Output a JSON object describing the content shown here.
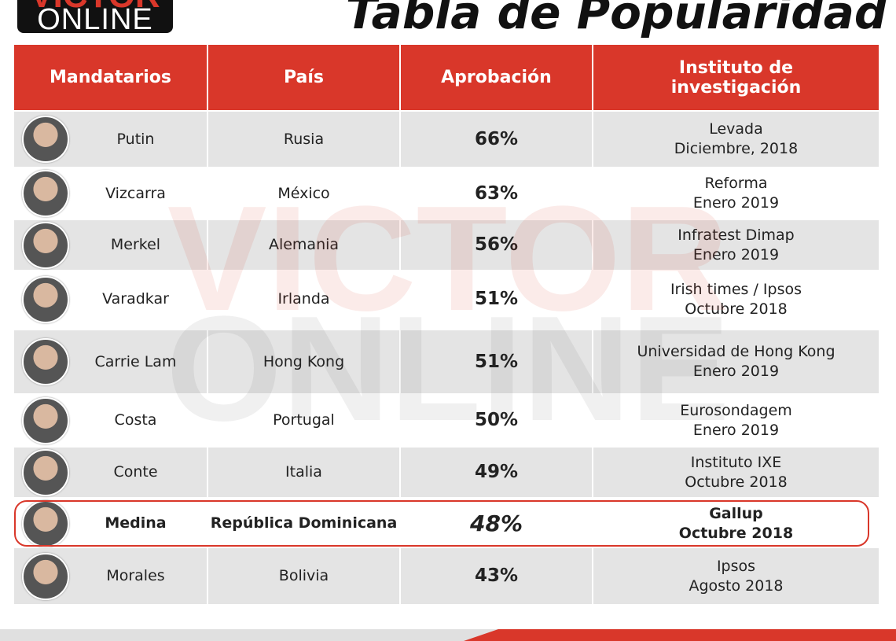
{
  "logo": {
    "top": "VICTOR",
    "bottom": "ONLINE"
  },
  "title": "Tabla de Popularidad",
  "watermark": [
    "VICTOR",
    "ONLINE"
  ],
  "table": {
    "header": [
      "Mandatarios",
      "País",
      "Aprobación",
      "Instituto de investigación"
    ],
    "highlighted_row": 7,
    "rows": [
      [
        "Putin",
        "Rusia",
        "66%",
        "Levada",
        "Diciembre, 2018"
      ],
      [
        "Vizcarra",
        "México",
        "63%",
        "Reforma",
        "Enero 2019"
      ],
      [
        "Merkel",
        "Alemania",
        "56%",
        "Infratest Dimap",
        "Enero 2019"
      ],
      [
        "Varadkar",
        "Irlanda",
        "51%",
        "Irish times / Ipsos",
        "Octubre 2018"
      ],
      [
        "Carrie Lam",
        "Hong Kong",
        "51%",
        "Universidad de Hong Kong",
        "Enero 2019"
      ],
      [
        "Costa",
        "Portugal",
        "50%",
        "Eurosondagem",
        "Enero 2019"
      ],
      [
        "Conte",
        "Italia",
        "49%",
        "Instituto IXE",
        "Octubre 2018"
      ],
      [
        "Medina",
        "República Dominicana",
        "48%",
        "Gallup",
        "Octubre 2018"
      ],
      [
        "Morales",
        "Bolivia",
        "43%",
        "Ipsos",
        "Agosto 2018"
      ]
    ]
  }
}
